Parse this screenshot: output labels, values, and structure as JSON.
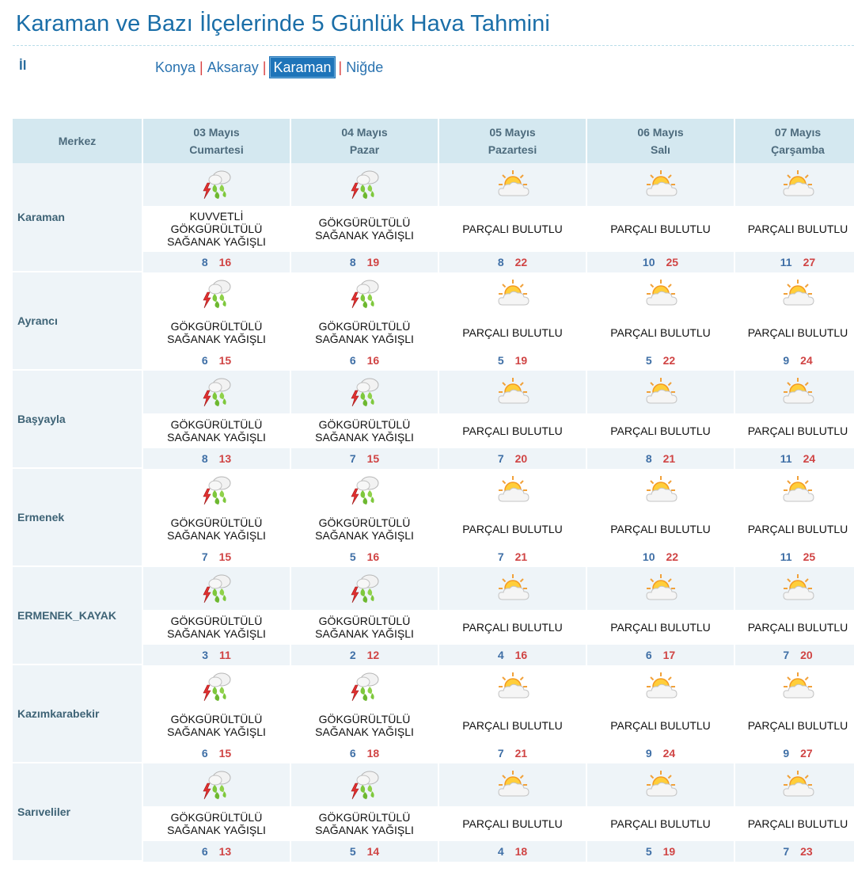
{
  "title": "Karaman ve Bazı İlçelerinde 5 Günlük Hava Tahmini",
  "il_label": "İl",
  "provinces": [
    {
      "name": "Konya",
      "active": false
    },
    {
      "name": "Aksaray",
      "active": false
    },
    {
      "name": "Karaman",
      "active": true
    },
    {
      "name": "Niğde",
      "active": false
    }
  ],
  "nav_separator": "|",
  "header": {
    "merkez": "Merkez",
    "days": [
      {
        "date": "03 Mayıs",
        "weekday": "Cumartesi"
      },
      {
        "date": "04 Mayıs",
        "weekday": "Pazar"
      },
      {
        "date": "05 Mayıs",
        "weekday": "Pazartesi"
      },
      {
        "date": "06 Mayıs",
        "weekday": "Salı"
      },
      {
        "date": "07 Mayıs",
        "weekday": "Çarşamba"
      }
    ]
  },
  "colors": {
    "accent": "#1a6ea8",
    "header_bg": "#d4e8f0",
    "row_bg": "#eef4f8",
    "min_temp": "#3f6fa6",
    "max_temp": "#d04444"
  },
  "rows": [
    {
      "city": "Karaman",
      "shaded": true,
      "days": [
        {
          "icon": "thunderstorm-icon",
          "lines": [
            "KUVVETLİ",
            "GÖKGÜRÜLTÜLÜ",
            "SAĞANAK YAĞIŞLI"
          ],
          "min": "8",
          "max": "16"
        },
        {
          "icon": "thunderstorm-icon",
          "lines": [
            "GÖKGÜRÜLTÜLÜ",
            "SAĞANAK YAĞIŞLI"
          ],
          "min": "8",
          "max": "19"
        },
        {
          "icon": "partly-cloudy-icon",
          "lines": [
            "PARÇALI BULUTLU"
          ],
          "min": "8",
          "max": "22"
        },
        {
          "icon": "partly-cloudy-icon",
          "lines": [
            "PARÇALI BULUTLU"
          ],
          "min": "10",
          "max": "25"
        },
        {
          "icon": "partly-cloudy-icon",
          "lines": [
            "PARÇALI BULUTLU"
          ],
          "min": "11",
          "max": "27"
        }
      ]
    },
    {
      "city": "Ayrancı",
      "shaded": false,
      "days": [
        {
          "icon": "thunderstorm-icon",
          "lines": [
            "GÖKGÜRÜLTÜLÜ",
            "SAĞANAK YAĞIŞLI"
          ],
          "min": "6",
          "max": "15"
        },
        {
          "icon": "thunderstorm-icon",
          "lines": [
            "GÖKGÜRÜLTÜLÜ",
            "SAĞANAK YAĞIŞLI"
          ],
          "min": "6",
          "max": "16"
        },
        {
          "icon": "partly-cloudy-icon",
          "lines": [
            "PARÇALI BULUTLU"
          ],
          "min": "5",
          "max": "19"
        },
        {
          "icon": "partly-cloudy-icon",
          "lines": [
            "PARÇALI BULUTLU"
          ],
          "min": "5",
          "max": "22"
        },
        {
          "icon": "partly-cloudy-icon",
          "lines": [
            "PARÇALI BULUTLU"
          ],
          "min": "9",
          "max": "24"
        }
      ]
    },
    {
      "city": "Başyayla",
      "shaded": true,
      "days": [
        {
          "icon": "thunderstorm-icon",
          "lines": [
            "GÖKGÜRÜLTÜLÜ",
            "SAĞANAK YAĞIŞLI"
          ],
          "min": "8",
          "max": "13"
        },
        {
          "icon": "thunderstorm-icon",
          "lines": [
            "GÖKGÜRÜLTÜLÜ",
            "SAĞANAK YAĞIŞLI"
          ],
          "min": "7",
          "max": "15"
        },
        {
          "icon": "partly-cloudy-icon",
          "lines": [
            "PARÇALI BULUTLU"
          ],
          "min": "7",
          "max": "20"
        },
        {
          "icon": "partly-cloudy-icon",
          "lines": [
            "PARÇALI BULUTLU"
          ],
          "min": "8",
          "max": "21"
        },
        {
          "icon": "partly-cloudy-icon",
          "lines": [
            "PARÇALI BULUTLU"
          ],
          "min": "11",
          "max": "24"
        }
      ]
    },
    {
      "city": "Ermenek",
      "shaded": false,
      "days": [
        {
          "icon": "thunderstorm-icon",
          "lines": [
            "GÖKGÜRÜLTÜLÜ",
            "SAĞANAK YAĞIŞLI"
          ],
          "min": "7",
          "max": "15"
        },
        {
          "icon": "thunderstorm-icon",
          "lines": [
            "GÖKGÜRÜLTÜLÜ",
            "SAĞANAK YAĞIŞLI"
          ],
          "min": "5",
          "max": "16"
        },
        {
          "icon": "partly-cloudy-icon",
          "lines": [
            "PARÇALI BULUTLU"
          ],
          "min": "7",
          "max": "21"
        },
        {
          "icon": "partly-cloudy-icon",
          "lines": [
            "PARÇALI BULUTLU"
          ],
          "min": "10",
          "max": "22"
        },
        {
          "icon": "partly-cloudy-icon",
          "lines": [
            "PARÇALI BULUTLU"
          ],
          "min": "11",
          "max": "25"
        }
      ]
    },
    {
      "city": "ERMENEK_KAYAK",
      "shaded": true,
      "days": [
        {
          "icon": "thunderstorm-icon",
          "lines": [
            "GÖKGÜRÜLTÜLÜ",
            "SAĞANAK YAĞIŞLI"
          ],
          "min": "3",
          "max": "11"
        },
        {
          "icon": "thunderstorm-icon",
          "lines": [
            "GÖKGÜRÜLTÜLÜ",
            "SAĞANAK YAĞIŞLI"
          ],
          "min": "2",
          "max": "12"
        },
        {
          "icon": "partly-cloudy-icon",
          "lines": [
            "PARÇALI BULUTLU"
          ],
          "min": "4",
          "max": "16"
        },
        {
          "icon": "partly-cloudy-icon",
          "lines": [
            "PARÇALI BULUTLU"
          ],
          "min": "6",
          "max": "17"
        },
        {
          "icon": "partly-cloudy-icon",
          "lines": [
            "PARÇALI BULUTLU"
          ],
          "min": "7",
          "max": "20"
        }
      ]
    },
    {
      "city": "Kazımkarabekir",
      "shaded": false,
      "days": [
        {
          "icon": "thunderstorm-icon",
          "lines": [
            "GÖKGÜRÜLTÜLÜ",
            "SAĞANAK YAĞIŞLI"
          ],
          "min": "6",
          "max": "15"
        },
        {
          "icon": "thunderstorm-icon",
          "lines": [
            "GÖKGÜRÜLTÜLÜ",
            "SAĞANAK YAĞIŞLI"
          ],
          "min": "6",
          "max": "18"
        },
        {
          "icon": "partly-cloudy-icon",
          "lines": [
            "PARÇALI BULUTLU"
          ],
          "min": "7",
          "max": "21"
        },
        {
          "icon": "partly-cloudy-icon",
          "lines": [
            "PARÇALI BULUTLU"
          ],
          "min": "9",
          "max": "24"
        },
        {
          "icon": "partly-cloudy-icon",
          "lines": [
            "PARÇALI BULUTLU"
          ],
          "min": "9",
          "max": "27"
        }
      ]
    },
    {
      "city": "Sarıveliler",
      "shaded": true,
      "days": [
        {
          "icon": "thunderstorm-icon",
          "lines": [
            "GÖKGÜRÜLTÜLÜ",
            "SAĞANAK YAĞIŞLI"
          ],
          "min": "6",
          "max": "13"
        },
        {
          "icon": "thunderstorm-icon",
          "lines": [
            "GÖKGÜRÜLTÜLÜ",
            "SAĞANAK YAĞIŞLI"
          ],
          "min": "5",
          "max": "14"
        },
        {
          "icon": "partly-cloudy-icon",
          "lines": [
            "PARÇALI BULUTLU"
          ],
          "min": "4",
          "max": "18"
        },
        {
          "icon": "partly-cloudy-icon",
          "lines": [
            "PARÇALI BULUTLU"
          ],
          "min": "5",
          "max": "19"
        },
        {
          "icon": "partly-cloudy-icon",
          "lines": [
            "PARÇALI BULUTLU"
          ],
          "min": "7",
          "max": "23"
        }
      ]
    }
  ]
}
